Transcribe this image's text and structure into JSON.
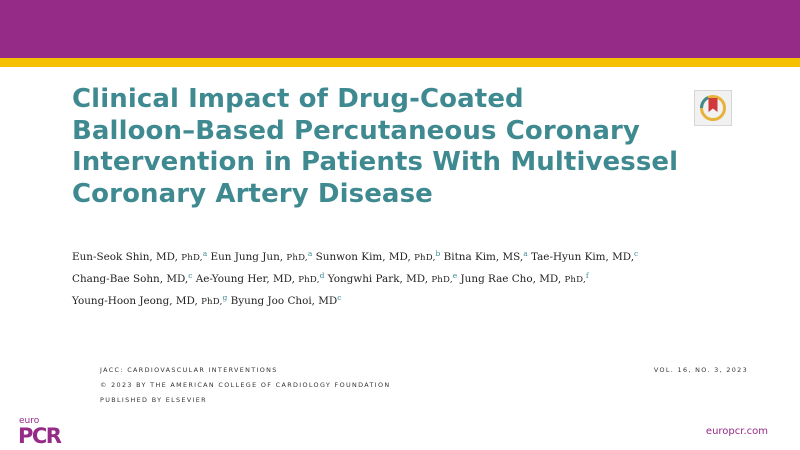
{
  "colors": {
    "band": "#962a87",
    "stripe": "#f5c000",
    "title": "#3f8a90",
    "affiliation": "#3f8a90"
  },
  "title_lines": [
    "Clinical Impact of Drug-Coated",
    "Balloon–Based Percutaneous Coronary",
    "Intervention in Patients With Multivessel",
    "Coronary Artery Disease"
  ],
  "crossmark": {
    "icon": "crossmark-update-icon"
  },
  "authors": [
    {
      "name": "Eun-Seok Shin, MD, ",
      "degree": "PhD,",
      "aff": "a"
    },
    {
      "name": "Eun Jung Jun, ",
      "degree": "PhD,",
      "aff": "a"
    },
    {
      "name": "Sunwon Kim, MD, ",
      "degree": "PhD,",
      "aff": "b"
    },
    {
      "name": "Bitna Kim, MS,",
      "degree": "",
      "aff": "a"
    },
    {
      "name": "Tae-Hyun Kim, MD,",
      "degree": "",
      "aff": "c"
    },
    {
      "name": "Chang-Bae Sohn, MD,",
      "degree": "",
      "aff": "c"
    },
    {
      "name": "Ae-Young Her, MD, ",
      "degree": "PhD,",
      "aff": "d"
    },
    {
      "name": "Yongwhi Park, MD, ",
      "degree": "PhD,",
      "aff": "e"
    },
    {
      "name": "Jung Rae Cho, MD, ",
      "degree": "PhD,",
      "aff": "f"
    },
    {
      "name": "Young-Hoon Jeong, MD, ",
      "degree": "PhD,",
      "aff": "g"
    },
    {
      "name": "Byung Joo Choi, MD",
      "degree": "",
      "aff": "c"
    }
  ],
  "journal_meta": [
    "JACC: CARDIOVASCULAR INTERVENTIONS",
    "© 2023 BY THE AMERICAN COLLEGE OF CARDIOLOGY FOUNDATION",
    "PUBLISHED BY ELSEVIER"
  ],
  "volume": "VOL. 16, NO. 3, 2023",
  "logo": {
    "euro": "euro",
    "pcr": "PCR"
  },
  "site": "europcr.com"
}
